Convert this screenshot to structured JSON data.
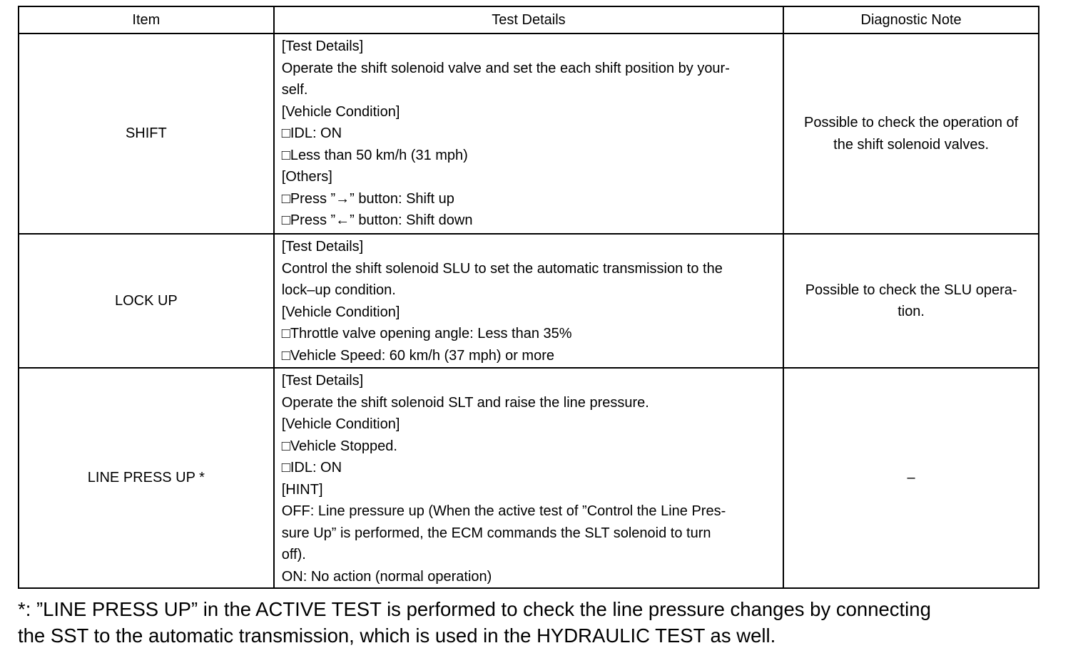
{
  "table": {
    "headers": [
      "Item",
      "Test Details",
      "Diagnostic Note"
    ],
    "rows": [
      {
        "item": "SHIFT",
        "details": [
          "[Test Details]",
          "Operate the shift solenoid valve and set the each shift position by your-",
          "self.",
          "[Vehicle Condition]",
          "□IDL: ON",
          "□Less than 50 km/h (31 mph)",
          "[Others]",
          "□Press ”→” button: Shift up",
          "□Press ”←” button: Shift down"
        ],
        "note": [
          "Possible to check the operation of",
          "the shift solenoid valves."
        ]
      },
      {
        "item": "LOCK UP",
        "details": [
          "[Test Details]",
          "Control the shift solenoid SLU to set the automatic transmission to the",
          "lock–up condition.",
          "[Vehicle Condition]",
          "□Throttle valve opening angle: Less than 35%",
          "□Vehicle Speed: 60 km/h (37 mph) or more"
        ],
        "note": [
          "Possible to check the SLU opera-",
          "tion."
        ]
      },
      {
        "item": "LINE PRESS UP *",
        "details": [
          "[Test Details]",
          "Operate the shift solenoid SLT and raise the line pressure.",
          "[Vehicle Condition]",
          "□Vehicle Stopped.",
          "□IDL: ON",
          "[HINT]",
          "OFF: Line pressure up (When the active test of ”Control the Line Pres-",
          "sure Up” is performed, the ECM commands the SLT solenoid to turn",
          "off).",
          "ON: No action (normal operation)"
        ],
        "note": [
          "–"
        ]
      }
    ]
  },
  "footnote": [
    "*: ”LINE PRESS UP” in the ACTIVE TEST is performed to check the line pressure changes by connecting",
    "the SST to the automatic transmission, which is used in the HYDRAULIC TEST as well."
  ]
}
